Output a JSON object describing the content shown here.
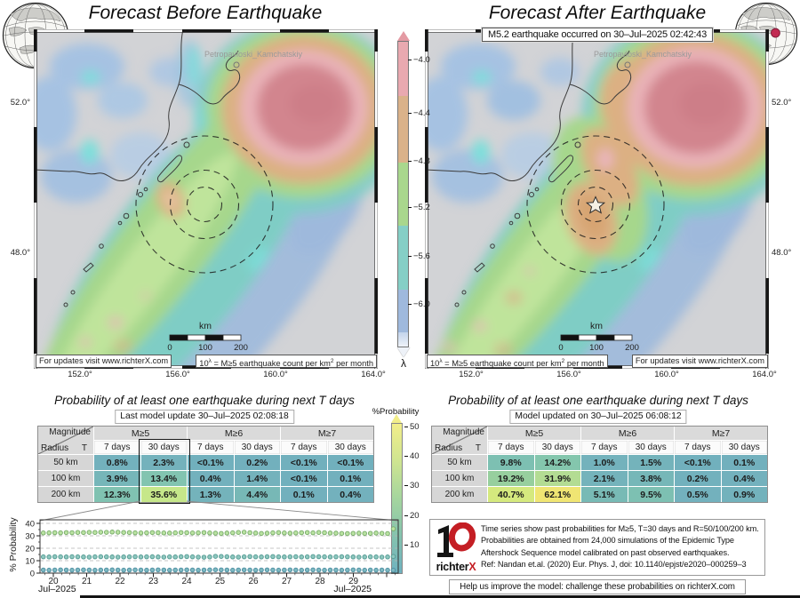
{
  "maps": {
    "left": {
      "title": "Forecast Before Earthquake",
      "city": "Petropavloski_Kamchatskiy",
      "updates_note": "For updates visit www.richterX.com",
      "lon_ticks": [
        "152.0°",
        "156.0°",
        "160.0°",
        "164.0°"
      ],
      "lat_ticks": [
        "52.0°",
        "48.0°"
      ],
      "scale": {
        "label": "km",
        "t0": "0",
        "t1": "100",
        "t2": "200"
      }
    },
    "right": {
      "title": "Forecast After Earthquake",
      "banner": "M5.2 earthquake occurred on 30–Jul–2025 02:42:43",
      "city": "Petropavloski_Kamchatskiy",
      "updates_note": "For updates visit www.richterX.com",
      "lon_ticks": [
        "152.0°",
        "156.0°",
        "160.0°",
        "164.0°"
      ],
      "lat_ticks": [
        "52.0°",
        "48.0°"
      ],
      "scale": {
        "label": "km",
        "t0": "0",
        "t1": "100",
        "t2": "200"
      }
    },
    "legend_formula": {
      "base": "10",
      "sup": "λ",
      "mid": " = M≥5 earthquake count per km",
      "sup2": "2",
      "tail": " per month"
    }
  },
  "lambda_bar": {
    "label": "λ",
    "ticks": [
      "−4.0",
      "−4.4",
      "−4.8",
      "−5.2",
      "−5.6",
      "−6.0"
    ]
  },
  "prob_bar": {
    "title": "%Probability",
    "ticks": [
      "50",
      "40",
      "30",
      "20",
      "10"
    ]
  },
  "tables": {
    "left": {
      "title": "Probability of at least one earthquake during next T days",
      "subtitle": "Last model update 30–Jul–2025 02:08:18",
      "corner": {
        "magnitude": "Magnitude",
        "radius": "Radius",
        "t": "T"
      },
      "mag_groups": [
        "M≥5",
        "M≥6",
        "M≥7"
      ],
      "period_headers": [
        "7 days",
        "30 days",
        "7 days",
        "30 days",
        "7 days",
        "30 days"
      ],
      "rows": [
        {
          "radius": "50 km",
          "values": [
            "0.8%",
            "2.3%",
            "<0.1%",
            "0.2%",
            "<0.1%",
            "<0.1%"
          ],
          "colors": [
            "#73b1bd",
            "#74b2bc",
            "#71b0bd",
            "#72b0bd",
            "#71b0bd",
            "#71b0bd"
          ]
        },
        {
          "radius": "100 km",
          "values": [
            "3.9%",
            "13.4%",
            "0.4%",
            "1.4%",
            "<0.1%",
            "0.1%"
          ],
          "colors": [
            "#76b6b9",
            "#82c4b0",
            "#73b1bd",
            "#74b2bc",
            "#71b0bd",
            "#72b0bd"
          ]
        },
        {
          "radius": "200 km",
          "values": [
            "12.3%",
            "35.6%",
            "1.3%",
            "4.4%",
            "0.1%",
            "0.4%"
          ],
          "colors": [
            "#80c2b1",
            "#c6e78a",
            "#74b3bb",
            "#77b8b6",
            "#72b0bd",
            "#73b1bd"
          ]
        }
      ],
      "highlighted_column": "M≥5 / 30 days"
    },
    "right": {
      "title": "Probability of at least one earthquake during next T days",
      "subtitle": "Model updated on 30–Jul–2025 06:08:12",
      "corner": {
        "magnitude": "Magnitude",
        "radius": "Radius",
        "t": "T"
      },
      "mag_groups": [
        "M≥5",
        "M≥6",
        "M≥7"
      ],
      "period_headers": [
        "7 days",
        "30 days",
        "7 days",
        "30 days",
        "7 days",
        "30 days"
      ],
      "rows": [
        {
          "radius": "50 km",
          "values": [
            "9.8%",
            "14.2%",
            "1.0%",
            "1.5%",
            "<0.1%",
            "0.1%"
          ],
          "colors": [
            "#7dc0b2",
            "#84c6ad",
            "#73b2bc",
            "#74b3bb",
            "#71b0bd",
            "#72b0bd"
          ]
        },
        {
          "radius": "100 km",
          "values": [
            "19.2%",
            "31.9%",
            "2.1%",
            "3.8%",
            "0.2%",
            "0.4%"
          ],
          "colors": [
            "#97cf9e",
            "#b3dc93",
            "#74b3bb",
            "#76b7b8",
            "#72b1bd",
            "#73b1bd"
          ]
        },
        {
          "radius": "200 km",
          "values": [
            "40.7%",
            "62.1%",
            "5.1%",
            "9.5%",
            "0.5%",
            "0.9%"
          ],
          "colors": [
            "#d5e97e",
            "#f0e573",
            "#78bab5",
            "#7dc0b2",
            "#73b1bd",
            "#73b2bc"
          ]
        }
      ]
    }
  },
  "chart_data": {
    "type": "scatter",
    "ylabel": "% Probability",
    "x_month_label_left": "Jul–2025",
    "x_month_label_right": "Jul–2025",
    "x_day_labels": [
      "20",
      "21",
      "22",
      "23",
      "24",
      "25",
      "26",
      "27",
      "28",
      "29"
    ],
    "x_days_range": [
      19.6,
      30.35
    ],
    "ylim": [
      0,
      42.8
    ],
    "yticks": [
      "0",
      "10",
      "20",
      "30",
      "40"
    ],
    "grid": "horizontal-dashed",
    "series": [
      {
        "name": "R=200 km, T=30 days, M≥5",
        "fill": "#b9e2a1",
        "stroke": "#76a968",
        "values": [
          32.3,
          32.4,
          32.5,
          32.4,
          32.6,
          32.5,
          32.7,
          32.6,
          32.8,
          32.7,
          32.9,
          32.8,
          33.0,
          32.9,
          32.7,
          32.6,
          32.4,
          32.3,
          32.4,
          32.6,
          32.5,
          32.3,
          32.2,
          32.4,
          32.6,
          32.5,
          32.3,
          32.4,
          32.6,
          32.3,
          32.1,
          31.9,
          32.2,
          32.4,
          32.7,
          32.9,
          32.5,
          32.2,
          31.9,
          32.1,
          32.4,
          32.6,
          32.3,
          32.1,
          32.3,
          32.5,
          32.6,
          32.4,
          32.7,
          32.5,
          32.2,
          32.1,
          31.9,
          31.8,
          32.0,
          32.1,
          31.9,
          32.0,
          32.2,
          32.0,
          31.8,
          35.6
        ]
      },
      {
        "name": "R=100 km, T=30 days, M≥5",
        "fill": "#8ec7bf",
        "stroke": "#539a92",
        "values": [
          13.1,
          13.0,
          13.2,
          13.1,
          13.0,
          13.2,
          13.1,
          13.0,
          12.9,
          13.1,
          13.2,
          13.1,
          13.0,
          12.9,
          13.0,
          13.1,
          13.2,
          13.0,
          13.1,
          13.2,
          13.0,
          12.9,
          13.1,
          13.0,
          13.2,
          13.3,
          13.1,
          12.9,
          12.8,
          13.0,
          13.5,
          13.4,
          13.2,
          13.0,
          12.9,
          13.1,
          13.3,
          13.1,
          13.0,
          13.2,
          13.3,
          13.1,
          13.0,
          13.1,
          13.2,
          13.0,
          13.1,
          13.3,
          13.2,
          13.1,
          13.0,
          13.1,
          13.2,
          13.1,
          13.0,
          12.9,
          13.0,
          13.1,
          13.0,
          12.9,
          13.0,
          13.4
        ]
      },
      {
        "name": "R=50 km, T=30 days, M≥5",
        "fill": "#7db7c0",
        "stroke": "#4b8da0",
        "values": [
          2.5,
          2.4,
          2.5,
          2.6,
          2.5,
          2.4,
          2.5,
          2.6,
          2.5,
          2.4,
          2.5,
          2.5,
          2.6,
          2.5,
          2.4,
          2.5,
          2.6,
          2.5,
          2.4,
          2.5,
          2.6,
          2.5,
          2.4,
          2.5,
          2.5,
          2.6,
          2.5,
          2.4,
          2.5,
          2.6,
          2.7,
          2.6,
          2.5,
          2.4,
          2.5,
          2.6,
          2.5,
          2.4,
          2.5,
          2.6,
          2.5,
          2.4,
          2.5,
          2.6,
          2.5,
          2.4,
          2.5,
          2.6,
          2.5,
          2.4,
          2.5,
          2.5,
          2.4,
          2.5,
          2.6,
          2.5,
          2.4,
          2.5,
          2.4,
          2.5,
          2.4,
          2.3
        ]
      }
    ]
  },
  "info_box": {
    "brand_black": "richter",
    "brand_x": "X",
    "lines": [
      "Time series show past probabilities for M≥5, T=30 days and R=50/100/200 km.",
      "Probabilities are obtained from 24,000 simulations of the Epidemic Type",
      "Aftershock Sequence model calibrated on past observed earthquakes.",
      "Ref: Nandan et.al. (2020) Eur. Phys. J, doi: 10.1140/epjst/e2020–000259–3"
    ]
  },
  "footer": {
    "help": "Help us improve the model: challenge these probabilities on richterX.com"
  }
}
